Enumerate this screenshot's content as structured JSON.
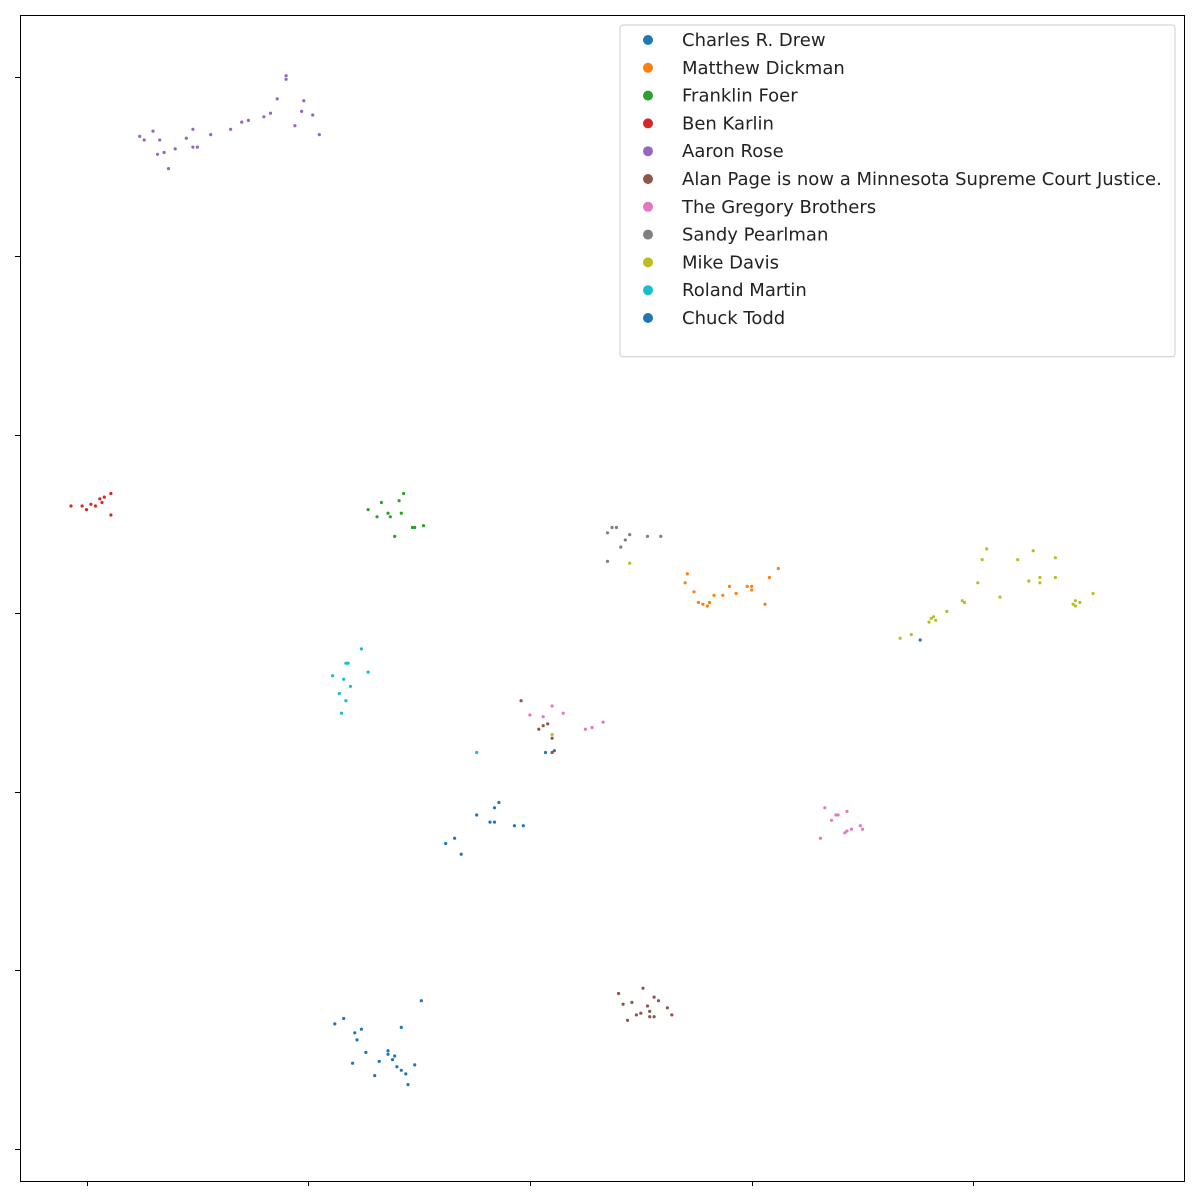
{
  "chart_data": {
    "type": "scatter",
    "title": "",
    "xlabel": "",
    "ylabel": "",
    "xlim": [
      -3.0,
      49.5
    ],
    "ylim": [
      -0.3,
      65.0
    ],
    "x_ticks": [
      0,
      10,
      20,
      30,
      40
    ],
    "y_ticks": [
      1.5,
      11.5,
      21.5,
      31.5,
      41.5,
      51.5,
      61.5
    ],
    "x_tick_labels": [
      "",
      "",
      "",
      "",
      ""
    ],
    "y_tick_labels": [
      "",
      "",
      "",
      "",
      "",
      "",
      ""
    ],
    "grid": false,
    "legend_position": "top-right",
    "series": [
      {
        "name": "Charles R. Drew",
        "color": "#1f77b4",
        "points": [
          [
            11.2,
            8.5
          ],
          [
            11.6,
            8.8
          ],
          [
            12.4,
            8.2
          ],
          [
            12.2,
            7.6
          ],
          [
            12.6,
            6.9
          ],
          [
            13.8,
            6.5
          ],
          [
            14.0,
            6.1
          ],
          [
            14.4,
            5.7
          ],
          [
            14.8,
            6.2
          ],
          [
            14.2,
            5.9
          ],
          [
            13.2,
            6.4
          ],
          [
            14.5,
            5.1
          ],
          [
            12.0,
            6.3
          ],
          [
            13.0,
            5.6
          ],
          [
            13.9,
            6.7
          ],
          [
            12.1,
            8.0
          ],
          [
            13.6,
            7.0
          ],
          [
            13.6,
            6.8
          ],
          [
            14.2,
            8.3
          ],
          [
            15.1,
            9.8
          ]
        ]
      },
      {
        "name": "Matthew Dickman",
        "color": "#ff7f0e",
        "points": [
          [
            27.0,
            33.2
          ],
          [
            27.1,
            33.7
          ],
          [
            27.4,
            32.7
          ],
          [
            27.6,
            32.1
          ],
          [
            27.8,
            32.0
          ],
          [
            28.0,
            31.9
          ],
          [
            28.1,
            32.1
          ],
          [
            28.3,
            32.5
          ],
          [
            28.7,
            32.5
          ],
          [
            29.0,
            33.0
          ],
          [
            29.3,
            32.6
          ],
          [
            29.8,
            33.0
          ],
          [
            30.0,
            32.8
          ],
          [
            30.0,
            33.0
          ],
          [
            30.6,
            32.0
          ],
          [
            30.8,
            33.5
          ],
          [
            31.2,
            34.0
          ]
        ]
      },
      {
        "name": "Franklin Foer",
        "color": "#2ca02c",
        "points": [
          [
            12.7,
            37.3
          ],
          [
            13.1,
            36.9
          ],
          [
            13.3,
            37.7
          ],
          [
            13.6,
            37.1
          ],
          [
            14.1,
            37.8
          ],
          [
            14.3,
            38.2
          ],
          [
            13.7,
            36.9
          ],
          [
            13.9,
            35.8
          ],
          [
            14.2,
            37.1
          ],
          [
            14.7,
            36.3
          ],
          [
            14.8,
            36.3
          ],
          [
            15.2,
            36.4
          ]
        ]
      },
      {
        "name": "Ben Karlin",
        "color": "#d62728",
        "points": [
          [
            -0.7,
            37.5
          ],
          [
            -0.2,
            37.5
          ],
          [
            0.0,
            37.3
          ],
          [
            0.2,
            37.6
          ],
          [
            0.4,
            37.5
          ],
          [
            0.6,
            37.9
          ],
          [
            0.8,
            38.0
          ],
          [
            1.1,
            38.2
          ],
          [
            0.7,
            37.7
          ],
          [
            1.1,
            37.0
          ]
        ]
      },
      {
        "name": "Aaron Rose",
        "color": "#9467bd",
        "points": [
          [
            2.6,
            58.0
          ],
          [
            3.0,
            58.5
          ],
          [
            3.3,
            58.0
          ],
          [
            3.5,
            57.3
          ],
          [
            3.7,
            56.4
          ],
          [
            4.5,
            58.1
          ],
          [
            4.8,
            58.6
          ],
          [
            5.0,
            57.6
          ],
          [
            5.6,
            58.3
          ],
          [
            6.5,
            58.6
          ],
          [
            7.0,
            59.0
          ],
          [
            8.0,
            59.3
          ],
          [
            7.3,
            59.1
          ],
          [
            8.3,
            59.5
          ],
          [
            8.6,
            60.3
          ],
          [
            9.0,
            61.6
          ],
          [
            9.0,
            61.4
          ],
          [
            9.8,
            60.2
          ],
          [
            9.7,
            59.6
          ],
          [
            9.4,
            58.8
          ],
          [
            10.2,
            59.4
          ],
          [
            10.5,
            58.3
          ],
          [
            3.2,
            57.2
          ],
          [
            2.4,
            58.2
          ],
          [
            4.0,
            57.5
          ],
          [
            4.8,
            57.6
          ]
        ]
      },
      {
        "name": "Alan Page is now a Minnesota Supreme Court Justice.",
        "color": "#8c564b",
        "points": [
          [
            19.6,
            26.6
          ],
          [
            20.4,
            25.0
          ],
          [
            20.6,
            25.2
          ],
          [
            20.8,
            25.3
          ],
          [
            21.0,
            24.5
          ],
          [
            21.0,
            23.7
          ],
          [
            24.0,
            10.2
          ],
          [
            24.2,
            9.6
          ],
          [
            24.4,
            8.7
          ],
          [
            24.6,
            9.7
          ],
          [
            24.8,
            9.0
          ],
          [
            25.1,
            10.5
          ],
          [
            25.0,
            9.1
          ],
          [
            25.4,
            8.9
          ],
          [
            25.6,
            8.9
          ],
          [
            25.4,
            9.2
          ],
          [
            25.8,
            9.8
          ],
          [
            25.6,
            10.0
          ],
          [
            26.2,
            9.4
          ],
          [
            26.4,
            9.0
          ],
          [
            25.3,
            9.5
          ]
        ]
      },
      {
        "name": "The Gregory Brothers",
        "color": "#e377c2",
        "points": [
          [
            20.0,
            25.8
          ],
          [
            20.6,
            25.7
          ],
          [
            21.0,
            26.3
          ],
          [
            21.5,
            25.9
          ],
          [
            22.5,
            25.0
          ],
          [
            22.8,
            25.1
          ],
          [
            23.3,
            25.4
          ],
          [
            33.3,
            20.6
          ],
          [
            33.1,
            18.9
          ],
          [
            33.6,
            19.9
          ],
          [
            33.8,
            20.2
          ],
          [
            34.3,
            19.3
          ],
          [
            34.5,
            19.4
          ],
          [
            34.3,
            20.4
          ],
          [
            34.9,
            19.6
          ],
          [
            35.0,
            19.4
          ],
          [
            33.9,
            20.2
          ],
          [
            34.2,
            19.2
          ]
        ]
      },
      {
        "name": "Sandy Pearlman",
        "color": "#7f7f7f",
        "points": [
          [
            23.5,
            36.0
          ],
          [
            23.7,
            36.3
          ],
          [
            23.9,
            36.3
          ],
          [
            24.1,
            35.2
          ],
          [
            24.3,
            35.6
          ],
          [
            24.5,
            35.9
          ],
          [
            25.3,
            35.8
          ],
          [
            25.9,
            35.8
          ],
          [
            23.5,
            34.4
          ]
        ]
      },
      {
        "name": "Mike Davis",
        "color": "#bcbd22",
        "points": [
          [
            21.0,
            24.7
          ],
          [
            24.5,
            34.3
          ],
          [
            36.7,
            30.1
          ],
          [
            37.2,
            30.3
          ],
          [
            38.0,
            31.0
          ],
          [
            38.1,
            31.2
          ],
          [
            38.2,
            31.3
          ],
          [
            38.3,
            31.1
          ],
          [
            38.8,
            31.6
          ],
          [
            39.5,
            32.2
          ],
          [
            39.6,
            32.1
          ],
          [
            40.2,
            33.2
          ],
          [
            40.4,
            34.5
          ],
          [
            40.6,
            35.1
          ],
          [
            41.2,
            32.4
          ],
          [
            42.0,
            34.5
          ],
          [
            42.5,
            33.3
          ],
          [
            43.0,
            33.5
          ],
          [
            42.7,
            35.0
          ],
          [
            43.0,
            33.2
          ],
          [
            43.7,
            33.5
          ],
          [
            43.7,
            34.6
          ],
          [
            44.5,
            32.0
          ],
          [
            44.6,
            32.2
          ],
          [
            44.8,
            32.1
          ],
          [
            45.4,
            32.6
          ],
          [
            44.6,
            31.9
          ]
        ]
      },
      {
        "name": "Roland Martin",
        "color": "#17becf",
        "points": [
          [
            11.1,
            28.0
          ],
          [
            11.4,
            27.0
          ],
          [
            11.6,
            27.8
          ],
          [
            11.7,
            28.7
          ],
          [
            11.8,
            28.7
          ],
          [
            11.7,
            26.6
          ],
          [
            12.4,
            29.5
          ],
          [
            12.7,
            28.2
          ],
          [
            11.5,
            25.9
          ],
          [
            11.9,
            27.4
          ],
          [
            17.6,
            23.7
          ]
        ]
      },
      {
        "name": "Chuck Todd",
        "color": "#1f77b4",
        "points": [
          [
            16.2,
            18.6
          ],
          [
            16.6,
            18.9
          ],
          [
            16.9,
            18.0
          ],
          [
            17.6,
            20.2
          ],
          [
            18.2,
            19.8
          ],
          [
            18.4,
            20.6
          ],
          [
            18.6,
            20.9
          ],
          [
            18.4,
            19.8
          ],
          [
            19.3,
            19.6
          ],
          [
            19.7,
            19.6
          ],
          [
            20.7,
            23.7
          ],
          [
            21.1,
            23.8
          ],
          [
            37.6,
            30.0
          ]
        ]
      }
    ]
  }
}
